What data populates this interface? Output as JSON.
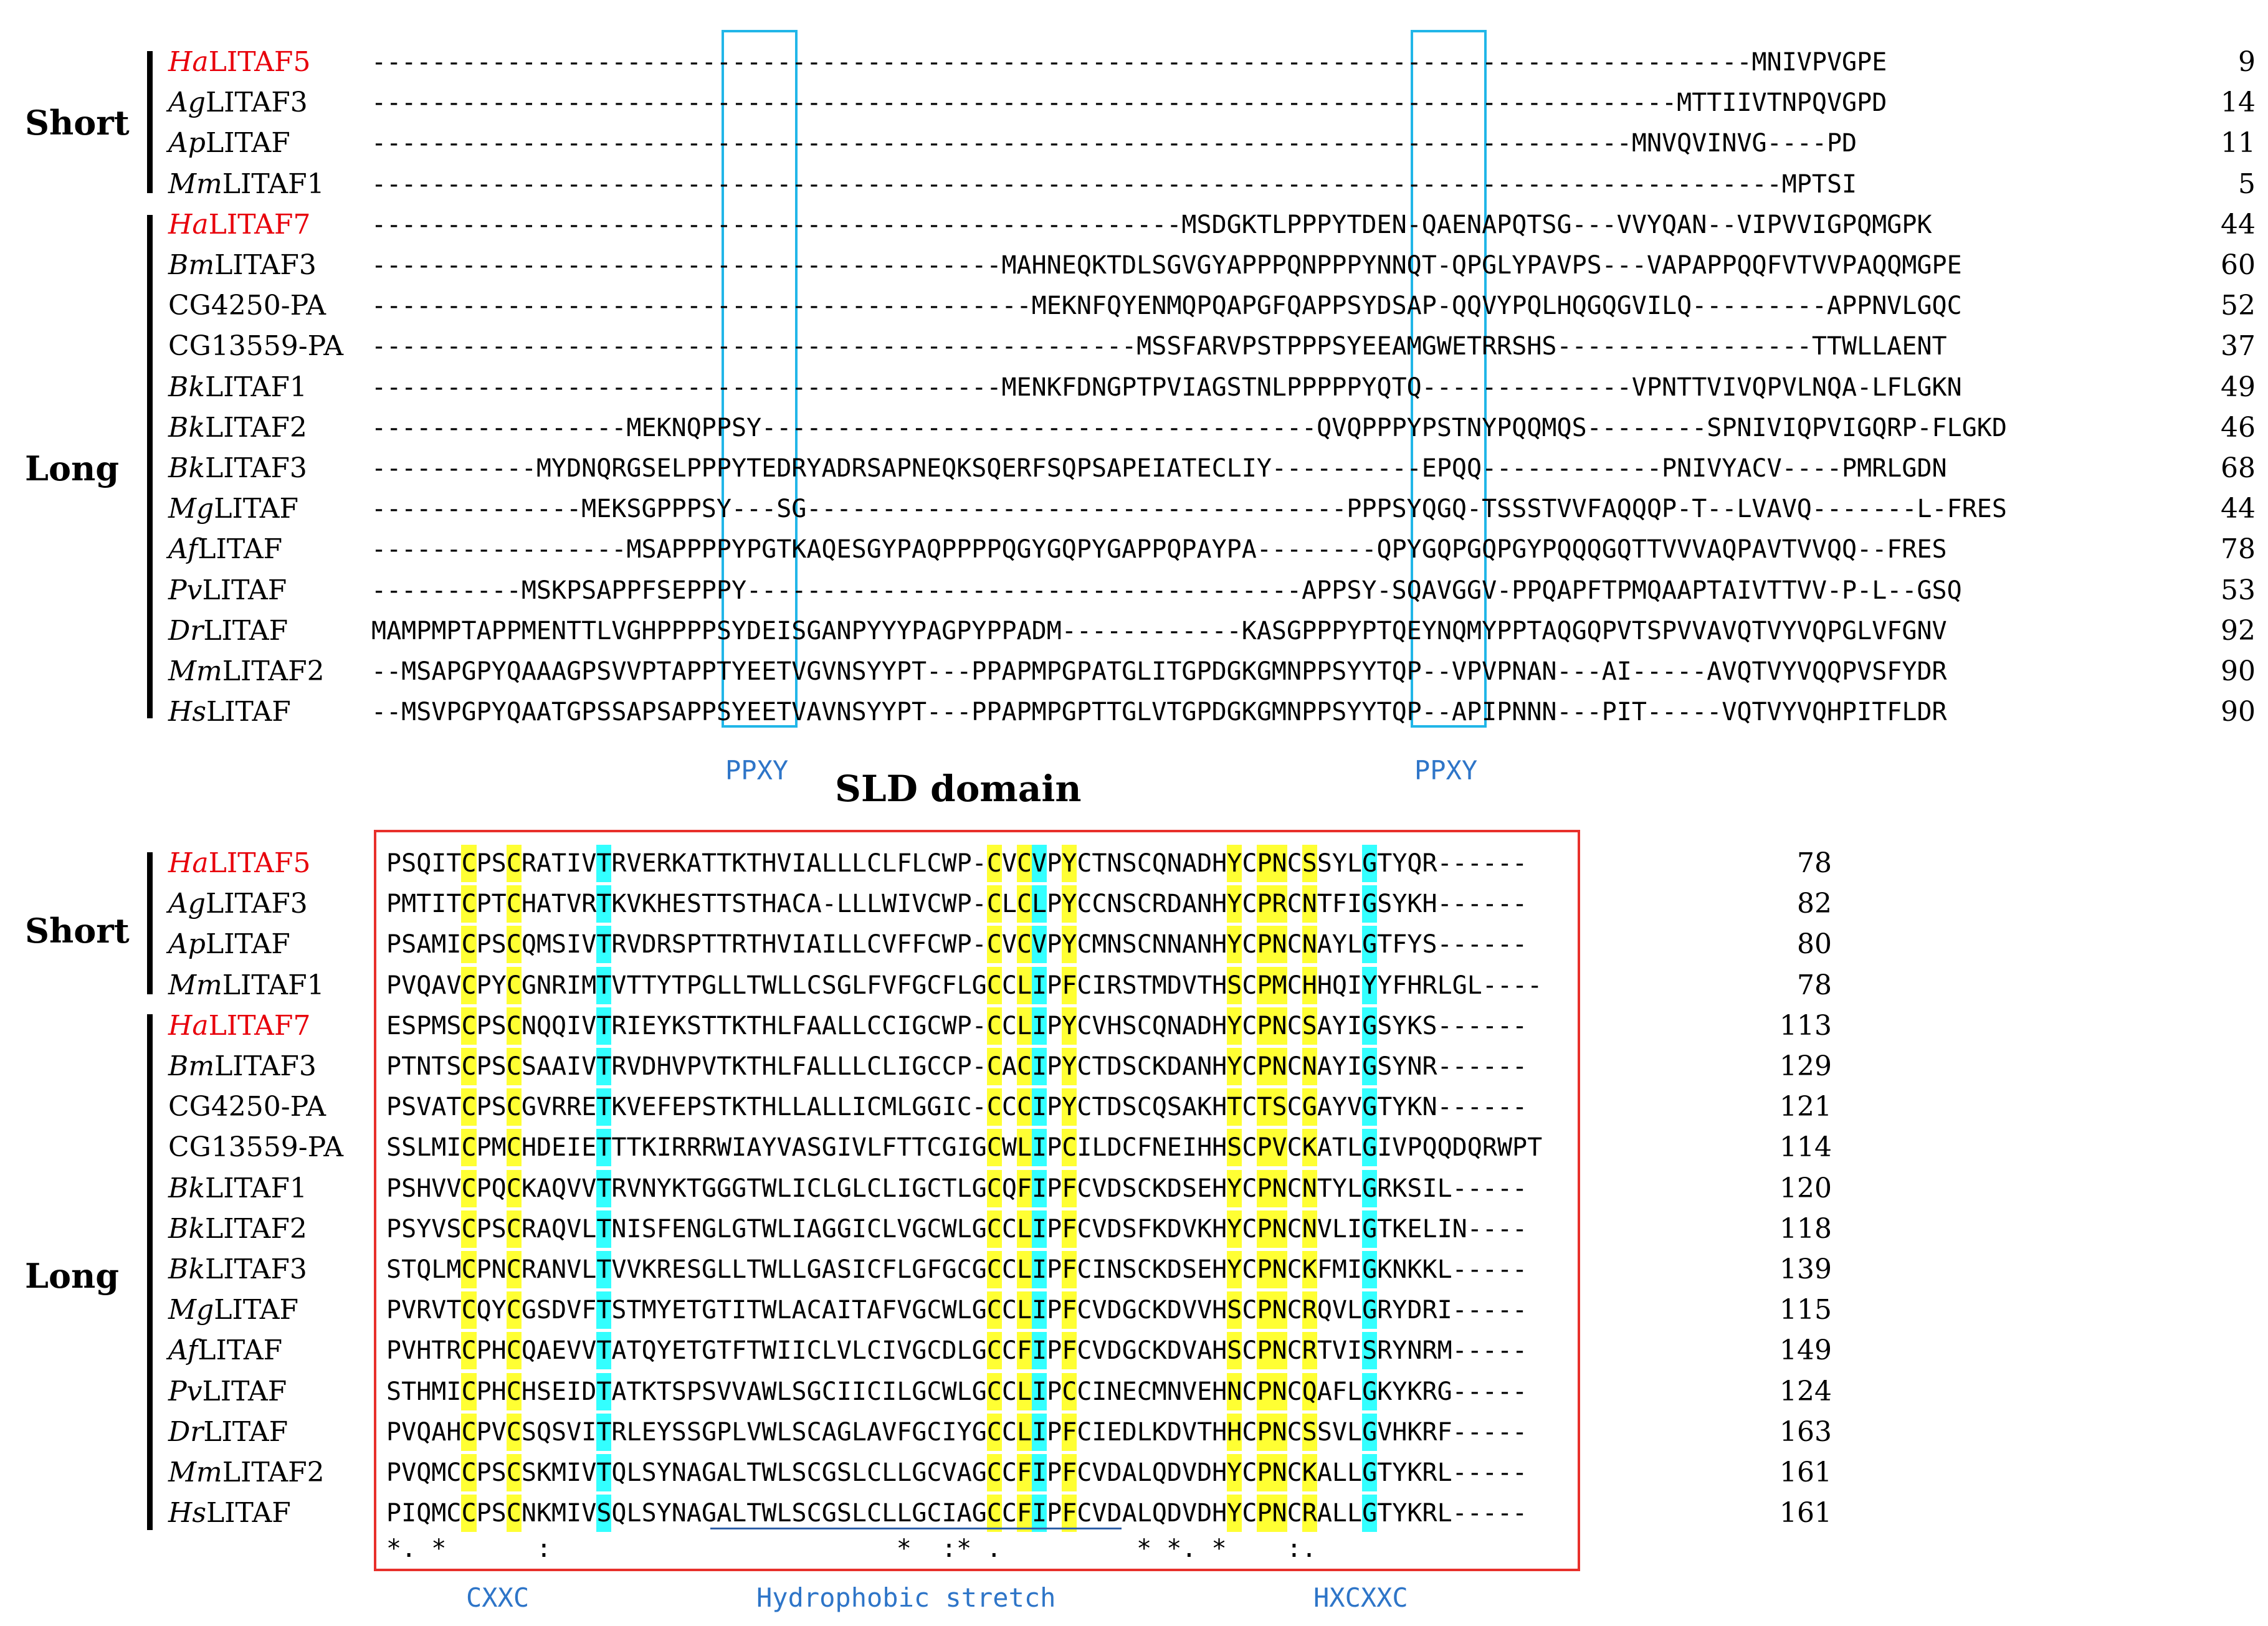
{
  "groups": {
    "short": "Short",
    "long": "Long"
  },
  "motifs": {
    "ppxy_left": "PPXY",
    "ppxy_right": "PPXY",
    "cxxc": "CXXC",
    "hydrophobic": "Hydrophobic stretch",
    "hxcxxc": "HXCXXC"
  },
  "domain_title": "SLD domain",
  "colors": {
    "yellow_highlight": "#ffff33",
    "cyan_highlight": "#33ffff",
    "ppxy_box": "#21b6e8",
    "sld_box": "#e8302b",
    "motif_text": "#2e75c8",
    "highlight_name": "#e8000b"
  },
  "top_block": [
    {
      "prefix": "Ha",
      "rest": "LITAF5",
      "red": true,
      "seq": "--------------------------------------------------------------------------------------------MNIVPVGPE",
      "num": "9"
    },
    {
      "prefix": "Ag",
      "rest": "LITAF3",
      "red": false,
      "seq": "---------------------------------------------------------------------------------------MTTIIVTNPQVGPD",
      "num": "14"
    },
    {
      "prefix": "Ap",
      "rest": "LITAF",
      "red": false,
      "seq": "------------------------------------------------------------------------------------MNVQVINVG----PD",
      "num": "11"
    },
    {
      "prefix": "Mm",
      "rest": "LITAF1",
      "red": false,
      "seq": "----------------------------------------------------------------------------------------------MPTSI",
      "num": "5"
    },
    {
      "prefix": "Ha",
      "rest": "LITAF7",
      "red": true,
      "seq": "------------------------------------------------------MSDGKTLPPPYTDEN-QAENAPQTSG---VVYQAN--VIPVVIGPQMGPK",
      "num": "44"
    },
    {
      "prefix": "Bm",
      "rest": "LITAF3",
      "red": false,
      "seq": "------------------------------------------MAHNEQKTDLSGVGYAPPPQNPPPYNNQT-QPGLYPAVPS---VAPAPPQQFVTVVPAQQMGPE",
      "num": "60"
    },
    {
      "prefix": "",
      "rest": "CG4250-PA",
      "red": false,
      "seq": "--------------------------------------------MEKNFQYENMQPQAPGFQAPPSYDSAP-QQVYPQLHQGQGVILQ---------APPNVLGQC",
      "num": "52"
    },
    {
      "prefix": "",
      "rest": "CG13559-PA",
      "red": false,
      "seq": "---------------------------------------------------MSSFARVPSTPPPSYEEAMGWETRRSHS-----------------TTWLLAENT",
      "num": "37"
    },
    {
      "prefix": "Bk",
      "rest": "LITAF1",
      "red": false,
      "seq": "------------------------------------------MENKFDNGPTPVIAGSTNLPPPPPYQTQ--------------VPNTTVIVQPVLNQA-LFLGKN",
      "num": "49"
    },
    {
      "prefix": "Bk",
      "rest": "LITAF2",
      "red": false,
      "seq": "-----------------MEKNQPPSY-------------------------------------QVQPPPYPSTNYPQQMQS--------SPNIVIQPVIGQRP-FLGKD",
      "num": "46"
    },
    {
      "prefix": "Bk",
      "rest": "LITAF3",
      "red": false,
      "seq": "-----------MYDNQRGSELPPPYTEDRYADRSAPNEQKSQERFSQPSAPEIATECLIY----------EPQQ------------PNIVYACV----PMRLGDN",
      "num": "68"
    },
    {
      "prefix": "Mg",
      "rest": "LITAF",
      "red": false,
      "seq": "--------------MEKSGPPPSY---SG------------------------------------PPPSYQGQ-TSSSTVVFAQQQP-T--LVAVQ-------L-FRES",
      "num": "44"
    },
    {
      "prefix": "Af",
      "rest": "LITAF",
      "red": false,
      "seq": "-----------------MSAPPPPYPGTKAQESGYPAQPPPPQGYGQPYGAPPQPAYPA--------QPYGQPGQPGYPQQQGQTTVVVAQPAVTVVQQ--FRES",
      "num": "78"
    },
    {
      "prefix": "Pv",
      "rest": "LITAF",
      "red": false,
      "seq": "----------MSKPSAPPFSEPPPY-------------------------------------APPSY-SQAVGGV-PPQAPFTPMQAAPTAIVTTVV-P-L--GSQ",
      "num": "53"
    },
    {
      "prefix": "Dr",
      "rest": "LITAF",
      "red": false,
      "seq": "MAMPMPTAPPMENTTLVGHPPPPSYDEISGANPYYYPAGPYPPADM------------KASGPPPYPTQEYNQMYPPTAQGQPVTSPVVAVQTVYVQPGLVFGNV",
      "num": "92"
    },
    {
      "prefix": "Mm",
      "rest": "LITAF2",
      "red": false,
      "seq": "--MSAPGPYQAAAGPSVVPTAPPTYEETVGVNSYYPT---PPAPMPGPATGLITGPDGKGMNPPSYYTQP--VPVPNAN---AI-----AVQTVYVQQPVSFYDR",
      "num": "90"
    },
    {
      "prefix": "Hs",
      "rest": "LITAF",
      "red": false,
      "seq": "--MSVPGPYQAATGPSSAPSAPPSYEETVAVNSYYPT---PPAPMPGPTTGLVTGPDGKGMNPPSYYTQP--APIPNNN---PIT-----VQTVYVQHPITFLDR",
      "num": "90"
    }
  ],
  "bottom_block": [
    {
      "prefix": "Ha",
      "rest": "LITAF5",
      "red": true,
      "seq": "PSQITCPSCRATIVTRVERKATTKTHVIALLLCLFLCWP-CVCVPYCTNSCQNADHYCPNCSSYLGTYQR------",
      "num": "78"
    },
    {
      "prefix": "Ag",
      "rest": "LITAF3",
      "red": false,
      "seq": "PMTITCPTCHATVRTKVKHESTTSTHACA-LLLWIVCWP-CLCLPYCCNSCRDANHYCPRCNTFIGSYKH------",
      "num": "82"
    },
    {
      "prefix": "Ap",
      "rest": "LITAF",
      "red": false,
      "seq": "PSAMICPSCQMSIVTRVDRSPTTRTHVIAILLCVFFCWP-CVCVPYCMNSCNNANHYCPNCNAYLGTFYS------",
      "num": "80"
    },
    {
      "prefix": "Mm",
      "rest": "LITAF1",
      "red": false,
      "seq": "PVQAVCPYCGNRIMTVTTYTPGLLTWLLCSGLFVFGCFLGCCLIPFCIRSTMDVTHSCPMCHHQIYYFHRLGL----",
      "num": "78"
    },
    {
      "prefix": "Ha",
      "rest": "LITAF7",
      "red": true,
      "seq": "ESPMSCPSCNQQIVTRIEYKSTTKTHLFAALLCCIGCWP-CCLIPYCVHSCQNADHYCPNCSAYIGSYKS------",
      "num": "113"
    },
    {
      "prefix": "Bm",
      "rest": "LITAF3",
      "red": false,
      "seq": "PTNTSCPSCSAAIVTRVDHVPVTKTHLFALLLCLIGCCP-CACIPYCTDSCKDANHYCPNCNAYIGSYNR------",
      "num": "129"
    },
    {
      "prefix": "",
      "rest": "CG4250-PA",
      "red": false,
      "seq": "PSVATCPSCGVRRETKVEFEPSTKTHLLALLICMLGGIC-CCCIPYCTDSCQSAKHTCTSCGAYVGTYKN------",
      "num": "121"
    },
    {
      "prefix": "",
      "rest": "CG13559-PA",
      "red": false,
      "seq": "SSLMICPMCHDEIETTTKIRRRWIAYVASGIVLFTTCGIGCWLIPCILDCFNEIHHSCPVCKATLGIVPQQDQRWPT",
      "num": "114"
    },
    {
      "prefix": "Bk",
      "rest": "LITAF1",
      "red": false,
      "seq": "PSHVVCPQCKAQVVTRVNYKTGGGTWLICLGLCLIGCTLGCQFIPFCVDSCKDSEHYCPNCNTYLGRKSIL-----",
      "num": "120"
    },
    {
      "prefix": "Bk",
      "rest": "LITAF2",
      "red": false,
      "seq": "PSYVSCPSCRAQVLTNISFENGLGTWLIAGGICLVGCWLGCCLIPFCVDSFKDVKHYCPNCNVLIGTKELIN----",
      "num": "118"
    },
    {
      "prefix": "Bk",
      "rest": "LITAF3",
      "red": false,
      "seq": "STQLMCPNCRANVLTVVKRESGLLTWLLGASICFLGFGCGCCLIPFCINSCKDSEHYCPNCKFMIGKNKKL-----",
      "num": "139"
    },
    {
      "prefix": "Mg",
      "rest": "LITAF",
      "red": false,
      "seq": "PVRVTCQYCGSDVFTSTMYETGTITWLACAITAFVGCWLGCCLIPFCVDGCKDVVHSCPNCRQVLGRYDRI-----",
      "num": "115"
    },
    {
      "prefix": "Af",
      "rest": "LITAF",
      "red": false,
      "seq": "PVHTRCPHCQAEVVTATQYETGTFTWIICLVLCIVGCDLGCCFIPFCVDGCKDVAHSCPNCRTVISRYNRM-----",
      "num": "149"
    },
    {
      "prefix": "Pv",
      "rest": "LITAF",
      "red": false,
      "seq": "STHMICPHCHSEIDTATKTSPSVVAWLSGCIICILGCWLGCCLIPCCINECMNVEHNCPNCQAFLGKYKRG-----",
      "num": "124"
    },
    {
      "prefix": "Dr",
      "rest": "LITAF",
      "red": false,
      "seq": "PVQAHCPVCSQSVITRLEYSSGPLVWLSCAGLAVFGCIYGCCLIPFCIEDLKDVTHHCPNCSSVLGVHKRF-----",
      "num": "163"
    },
    {
      "prefix": "Mm",
      "rest": "LITAF2",
      "red": false,
      "seq": "PVQMCCPSCSKMIVTQLSYNAGALTWLSCGSLCLLGCVAGCCFIPFCVDALQDVDHYCPNCKALLGTYKRL-----",
      "num": "161"
    },
    {
      "prefix": "Hs",
      "rest": "LITAF",
      "red": false,
      "seq": "PIQMCCPSCNKMIVSQLSYNAGALTWLSCGSLCLLGCIAGCCFIPFCVDALQDVDHYCPNCRALLGTYKRL-----",
      "num": "161"
    }
  ],
  "consensus": "*. *      :                       *  :* .         * *. *    :."
}
